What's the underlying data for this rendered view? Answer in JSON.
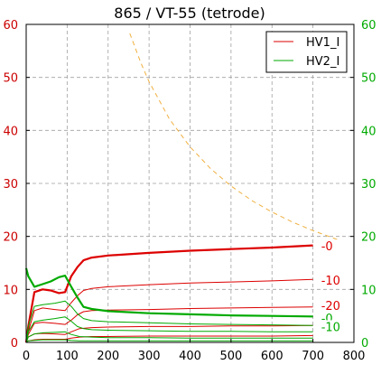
{
  "chart_data": {
    "type": "line",
    "title": "865 / VT-55 (tetrode)",
    "xlabel": "",
    "ylabel": "",
    "xlim": [
      0,
      800
    ],
    "ylim": [
      0,
      60
    ],
    "y2lim": [
      0,
      60
    ],
    "grid": true,
    "legend_position": "top-right",
    "x_ticks": [
      "0",
      "100",
      "200",
      "300",
      "400",
      "500",
      "600",
      "700",
      "800"
    ],
    "y_ticks": [
      "0",
      "10",
      "20",
      "30",
      "40",
      "50",
      "60"
    ],
    "y2_ticks": [
      "0",
      "10",
      "20",
      "30",
      "40",
      "50",
      "60"
    ],
    "colors": {
      "hv1": "#dd0000",
      "hv2": "#00aa00",
      "power_limit": "#f0b040",
      "grid": "#a0a0a0",
      "left_axis_text": "#cc0000",
      "right_axis_text": "#00aa00"
    },
    "legend": [
      {
        "label": "HV1_I",
        "color": "#dd0000"
      },
      {
        "label": "HV2_I",
        "color": "#00aa00"
      }
    ],
    "curve_labels": [
      {
        "text": "-0",
        "x": 720,
        "y": 18.2,
        "color": "#dd0000"
      },
      {
        "text": "-10",
        "x": 720,
        "y": 11.8,
        "color": "#dd0000"
      },
      {
        "text": "-20",
        "x": 720,
        "y": 7.0,
        "color": "#dd0000"
      },
      {
        "text": "-0",
        "x": 720,
        "y": 4.6,
        "color": "#00aa00"
      },
      {
        "text": "-10",
        "x": 720,
        "y": 3.0,
        "color": "#00aa00"
      }
    ],
    "power_limit": {
      "name": "",
      "x": [
        253,
        280,
        300,
        350,
        400,
        450,
        500,
        550,
        600,
        650,
        700,
        760
      ],
      "y": [
        58.3,
        52.7,
        49.2,
        42.1,
        36.9,
        32.8,
        29.5,
        26.8,
        24.6,
        22.7,
        21.1,
        19.4
      ]
    },
    "series": [
      {
        "group": "HV1_I",
        "width": 2.2,
        "color": "#dd0000",
        "x": [
          0,
          5,
          20,
          40,
          60,
          80,
          95,
          110,
          125,
          140,
          160,
          200,
          300,
          400,
          500,
          600,
          700
        ],
        "y": [
          0,
          3,
          9.5,
          10,
          9.8,
          9.3,
          9.5,
          12.5,
          14.2,
          15.5,
          16.0,
          16.4,
          16.9,
          17.3,
          17.6,
          17.9,
          18.3
        ]
      },
      {
        "group": "HV1_I",
        "width": 1.0,
        "color": "#dd0000",
        "x": [
          0,
          5,
          20,
          40,
          70,
          95,
          110,
          125,
          140,
          160,
          200,
          300,
          400,
          500,
          600,
          700
        ],
        "y": [
          0,
          2,
          6.0,
          6.5,
          6.2,
          6.0,
          7.5,
          8.8,
          9.8,
          10.2,
          10.5,
          10.9,
          11.2,
          11.4,
          11.6,
          11.9
        ]
      },
      {
        "group": "HV1_I",
        "width": 1.0,
        "color": "#dd0000",
        "x": [
          0,
          5,
          20,
          40,
          70,
          95,
          110,
          125,
          140,
          160,
          200,
          300,
          400,
          500,
          600,
          700
        ],
        "y": [
          0,
          1.5,
          3.6,
          3.8,
          3.6,
          3.4,
          4.2,
          5.2,
          5.8,
          6.0,
          6.1,
          6.2,
          6.4,
          6.5,
          6.6,
          6.7
        ]
      },
      {
        "group": "HV1_I",
        "width": 1.0,
        "color": "#dd0000",
        "x": [
          0,
          5,
          20,
          40,
          70,
          95,
          110,
          130,
          160,
          200,
          300,
          400,
          500,
          600,
          700
        ],
        "y": [
          0,
          1,
          1.6,
          1.7,
          1.6,
          1.5,
          2.0,
          2.6,
          2.8,
          2.9,
          3.0,
          3.0,
          3.1,
          3.1,
          3.2
        ]
      },
      {
        "group": "HV1_I",
        "width": 1.0,
        "color": "#dd0000",
        "x": [
          0,
          5,
          20,
          40,
          70,
          95,
          110,
          130,
          160,
          200,
          300,
          400,
          500,
          600,
          700
        ],
        "y": [
          0,
          0.3,
          0.5,
          0.6,
          0.6,
          0.6,
          0.8,
          1.0,
          1.1,
          1.1,
          1.2,
          1.2,
          1.2,
          1.2,
          1.3
        ]
      },
      {
        "group": "HV2_I",
        "width": 2.2,
        "color": "#00aa00",
        "x": [
          0,
          5,
          20,
          40,
          60,
          80,
          95,
          110,
          125,
          140,
          160,
          200,
          300,
          400,
          500,
          600,
          700
        ],
        "y": [
          14,
          12.5,
          10.5,
          11.0,
          11.5,
          12.3,
          12.6,
          10.5,
          8.5,
          6.7,
          6.3,
          5.9,
          5.5,
          5.3,
          5.1,
          5.0,
          4.9
        ]
      },
      {
        "group": "HV2_I",
        "width": 1.0,
        "color": "#00aa00",
        "x": [
          0,
          5,
          20,
          40,
          70,
          95,
          110,
          125,
          140,
          160,
          200,
          300,
          400,
          500,
          600,
          700
        ],
        "y": [
          0,
          3,
          6.8,
          7.1,
          7.4,
          7.8,
          6.8,
          5.4,
          4.5,
          4.1,
          3.9,
          3.7,
          3.5,
          3.4,
          3.3,
          3.2
        ]
      },
      {
        "group": "HV2_I",
        "width": 1.0,
        "color": "#00aa00",
        "x": [
          0,
          5,
          20,
          40,
          70,
          95,
          110,
          125,
          140,
          160,
          200,
          300,
          400,
          500,
          600,
          700
        ],
        "y": [
          0,
          2,
          3.9,
          4.2,
          4.5,
          4.8,
          4.0,
          3.0,
          2.6,
          2.4,
          2.3,
          2.2,
          2.1,
          2.1,
          2.0,
          2.0
        ]
      },
      {
        "group": "HV2_I",
        "width": 1.0,
        "color": "#00aa00",
        "x": [
          0,
          5,
          20,
          40,
          70,
          95,
          110,
          130,
          160,
          200,
          300,
          400,
          500,
          600,
          700
        ],
        "y": [
          0,
          1,
          1.6,
          1.8,
          1.9,
          2.0,
          1.5,
          1.1,
          1.0,
          0.9,
          0.9,
          0.8,
          0.8,
          0.8,
          0.8
        ]
      },
      {
        "group": "HV2_I",
        "width": 1.0,
        "color": "#00aa00",
        "x": [
          0,
          5,
          20,
          40,
          70,
          95,
          110,
          130,
          160,
          200,
          300,
          400,
          500,
          600,
          700
        ],
        "y": [
          0,
          0.3,
          0.4,
          0.5,
          0.5,
          0.5,
          0.4,
          0.3,
          0.3,
          0.3,
          0.3,
          0.3,
          0.3,
          0.3,
          0.3
        ]
      }
    ]
  }
}
